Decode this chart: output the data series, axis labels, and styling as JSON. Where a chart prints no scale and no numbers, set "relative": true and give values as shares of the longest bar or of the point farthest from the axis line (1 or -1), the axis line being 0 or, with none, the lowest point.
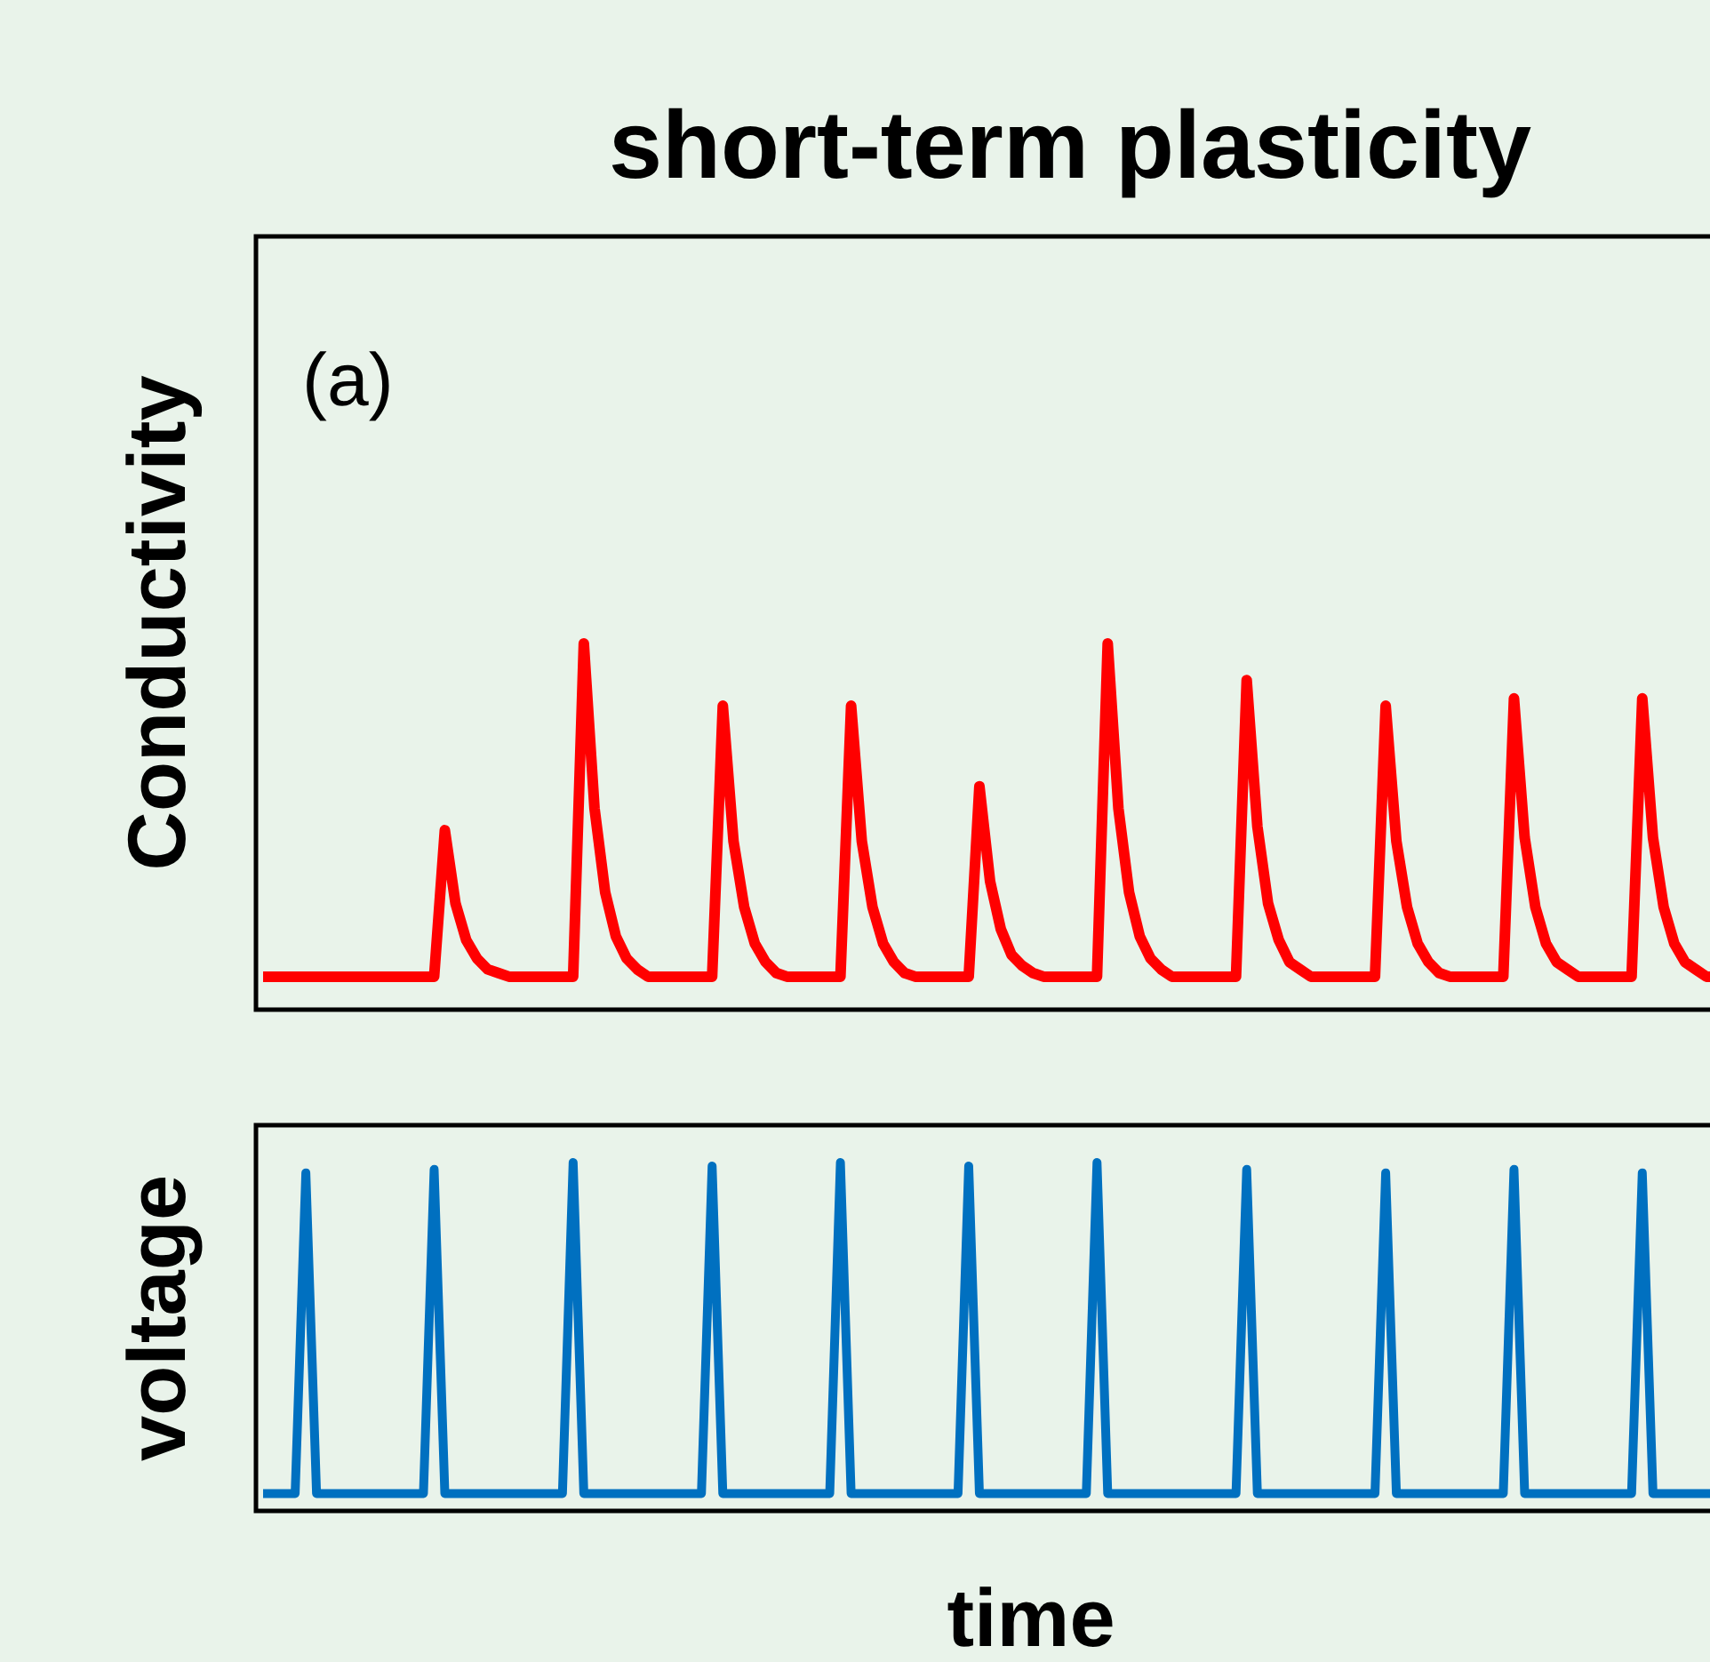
{
  "chart_data": [
    {
      "type": "line",
      "title": "short-term plasticity",
      "ylabel": "Conductivity",
      "annotations": [
        "(a)"
      ],
      "relative": true,
      "categories": [
        null,
        null,
        null,
        null,
        null,
        null,
        null,
        null,
        null,
        null,
        null,
        null,
        null,
        null,
        null,
        null,
        null,
        null,
        null,
        null,
        null,
        null,
        null,
        null,
        null,
        null,
        null,
        null,
        null,
        null,
        null,
        null,
        null,
        null,
        null,
        null,
        null,
        null,
        null,
        null,
        null,
        null,
        null,
        null,
        null,
        null,
        null,
        null,
        null,
        null,
        null,
        null,
        null,
        null,
        null,
        null,
        null,
        null,
        null,
        null,
        null,
        null,
        null,
        null,
        null,
        null,
        null,
        null,
        null,
        null,
        null,
        null,
        null,
        null,
        null,
        null,
        null,
        null,
        null,
        null,
        null,
        null,
        null,
        null,
        null,
        null,
        null,
        null,
        null,
        null,
        null,
        null,
        null,
        null,
        null,
        null,
        null,
        null,
        null,
        null,
        null,
        null,
        null,
        null,
        null,
        null,
        null,
        null,
        null,
        null,
        null,
        null,
        null,
        null,
        null,
        null,
        null,
        null,
        null,
        null,
        null,
        null,
        null,
        null,
        null,
        null,
        null,
        null,
        null,
        null,
        null,
        null,
        null,
        null,
        null,
        null,
        null
      ],
      "series": [
        {
          "color": "#ff0000",
          "values": [
            0.09,
            0.09,
            0.09,
            0.09,
            0.09,
            0.09,
            0.09,
            0.09,
            0.09,
            0.09,
            0.09,
            0.09,
            0.09,
            0.09,
            0.09,
            0.09,
            0.09,
            0.49,
            0.29,
            0.19,
            0.14,
            0.11,
            0.1,
            0.09,
            0.09,
            0.09,
            0.09,
            0.09,
            0.09,
            0.09,
            1,
            0.55,
            0.32,
            0.2,
            0.14,
            0.11,
            0.09,
            0.09,
            0.09,
            0.09,
            0.09,
            0.09,
            0.09,
            0.83,
            0.46,
            0.28,
            0.18,
            0.13,
            0.1,
            0.09,
            0.09,
            0.09,
            0.09,
            0.09,
            0.09,
            0.83,
            0.46,
            0.28,
            0.18,
            0.13,
            0.1,
            0.09,
            0.09,
            0.09,
            0.09,
            0.09,
            0.09,
            0.61,
            0.35,
            0.22,
            0.15,
            0.12,
            0.1,
            0.09,
            0.09,
            0.09,
            0.09,
            0.09,
            0.09,
            1,
            0.55,
            0.32,
            0.2,
            0.14,
            0.11,
            0.09,
            0.09,
            0.09,
            0.09,
            0.09,
            0.09,
            0.09,
            0.9,
            0.5,
            0.29,
            0.19,
            0.13,
            0.11,
            0.09,
            0.09,
            0.09,
            0.09,
            0.09,
            0.09,
            0.09,
            0.83,
            0.46,
            0.28,
            0.18,
            0.13,
            0.1,
            0.09,
            0.09,
            0.09,
            0.09,
            0.09,
            0.09,
            0.85,
            0.47,
            0.28,
            0.18,
            0.13,
            0.11,
            0.09,
            0.09,
            0.09,
            0.09,
            0.09,
            0.09,
            0.85,
            0.47,
            0.28,
            0.18,
            0.13,
            0.11,
            0.09,
            0.09
          ]
        }
      ]
    },
    {
      "type": "line",
      "ylabel": "voltage",
      "xlabel": "time",
      "relative": true,
      "categories": [
        null,
        null,
        null,
        null,
        null,
        null,
        null,
        null,
        null,
        null,
        null,
        null,
        null,
        null,
        null,
        null,
        null,
        null,
        null,
        null,
        null,
        null,
        null,
        null,
        null,
        null,
        null,
        null,
        null,
        null,
        null,
        null,
        null,
        null,
        null,
        null,
        null,
        null,
        null,
        null,
        null,
        null,
        null,
        null,
        null,
        null,
        null,
        null,
        null,
        null,
        null,
        null,
        null,
        null,
        null,
        null,
        null,
        null,
        null,
        null,
        null,
        null,
        null,
        null,
        null,
        null,
        null,
        null,
        null,
        null,
        null,
        null,
        null,
        null,
        null,
        null,
        null,
        null,
        null,
        null,
        null,
        null,
        null,
        null,
        null,
        null,
        null,
        null,
        null,
        null,
        null,
        null,
        null,
        null,
        null,
        null,
        null,
        null,
        null,
        null,
        null,
        null,
        null,
        null,
        null,
        null,
        null,
        null,
        null,
        null,
        null,
        null,
        null,
        null,
        null,
        null,
        null,
        null,
        null,
        null,
        null,
        null,
        null,
        null,
        null,
        null,
        null,
        null,
        null,
        null,
        null,
        null,
        null,
        null,
        null,
        null,
        null
      ],
      "series": [
        {
          "color": "#0070c0",
          "values": [
            0.05,
            0.05,
            0.05,
            0.05,
            0.97,
            0.05,
            0.05,
            0.05,
            0.05,
            0.05,
            0.05,
            0.05,
            0.05,
            0.05,
            0.05,
            0.05,
            0.98,
            0.05,
            0.05,
            0.05,
            0.05,
            0.05,
            0.05,
            0.05,
            0.05,
            0.05,
            0.05,
            0.05,
            0.05,
            1,
            0.05,
            0.05,
            0.05,
            0.05,
            0.05,
            0.05,
            0.05,
            0.05,
            0.05,
            0.05,
            0.05,
            0.05,
            0.99,
            0.05,
            0.05,
            0.05,
            0.05,
            0.05,
            0.05,
            0.05,
            0.05,
            0.05,
            0.05,
            0.05,
            1,
            0.05,
            0.05,
            0.05,
            0.05,
            0.05,
            0.05,
            0.05,
            0.05,
            0.05,
            0.05,
            0.05,
            0.99,
            0.05,
            0.05,
            0.05,
            0.05,
            0.05,
            0.05,
            0.05,
            0.05,
            0.05,
            0.05,
            0.05,
            1,
            0.05,
            0.05,
            0.05,
            0.05,
            0.05,
            0.05,
            0.05,
            0.05,
            0.05,
            0.05,
            0.05,
            0.05,
            0.05,
            0.98,
            0.05,
            0.05,
            0.05,
            0.05,
            0.05,
            0.05,
            0.05,
            0.05,
            0.05,
            0.05,
            0.05,
            0.05,
            0.97,
            0.05,
            0.05,
            0.05,
            0.05,
            0.05,
            0.05,
            0.05,
            0.05,
            0.05,
            0.05,
            0.05,
            0.98,
            0.05,
            0.05,
            0.05,
            0.05,
            0.05,
            0.05,
            0.05,
            0.05,
            0.05,
            0.05,
            0.05,
            0.97,
            0.05,
            0.05,
            0.05,
            0.05,
            0.05,
            0.05,
            0.05
          ]
        }
      ]
    }
  ]
}
